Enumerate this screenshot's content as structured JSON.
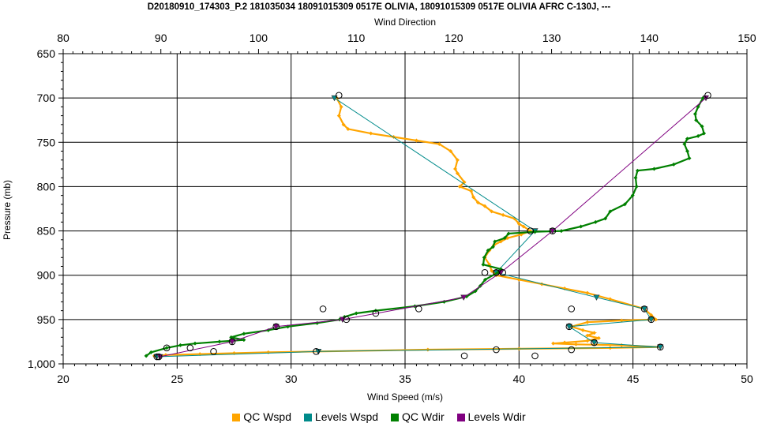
{
  "title": "D20180910_174303_P.2 181035034 18091015309 0517E OLIVIA, 18091015309 0517E OLIVIA AFRC C-130J, ---",
  "chart_data": {
    "type": "line",
    "title": "D20180910_174303_P.2 181035034 18091015309 0517E OLIVIA, 18091015309 0517E OLIVIA AFRC C-130J, ---",
    "xlabel": "Wind Speed (m/s)",
    "x2label": "Wind Direction",
    "ylabel": "Pressure (mb)",
    "xlim": [
      20,
      50
    ],
    "x2lim": [
      80,
      150
    ],
    "ylim": [
      1000,
      650
    ],
    "x_ticks": [
      "20",
      "25",
      "30",
      "35",
      "40",
      "45",
      "50"
    ],
    "x2_ticks": [
      "80",
      "90",
      "100",
      "110",
      "120",
      "130",
      "140",
      "150"
    ],
    "y_ticks": [
      "650",
      "700",
      "750",
      "800",
      "850",
      "900",
      "950",
      "1,000"
    ],
    "grid": true,
    "legend_position": "bottom",
    "series": [
      {
        "name": "QC Wspd",
        "axis": "bottom",
        "color": "#FFA500",
        "marker": "diamond",
        "points": [
          [
            32.0,
            700
          ],
          [
            32.2,
            710
          ],
          [
            32.1,
            720
          ],
          [
            32.3,
            730
          ],
          [
            32.5,
            735
          ],
          [
            33.5,
            740
          ],
          [
            34.5,
            744
          ],
          [
            35.5,
            748
          ],
          [
            36.5,
            752
          ],
          [
            37.0,
            760
          ],
          [
            37.3,
            770
          ],
          [
            37.2,
            780
          ],
          [
            37.3,
            785
          ],
          [
            37.6,
            795
          ],
          [
            37.4,
            800
          ],
          [
            37.9,
            805
          ],
          [
            38.0,
            812
          ],
          [
            38.2,
            818
          ],
          [
            38.5,
            822
          ],
          [
            38.8,
            828
          ],
          [
            39.3,
            832
          ],
          [
            39.8,
            836
          ],
          [
            40.0,
            842
          ],
          [
            40.2,
            845
          ],
          [
            40.5,
            850
          ],
          [
            40.1,
            854
          ],
          [
            39.5,
            858
          ],
          [
            39.2,
            862
          ],
          [
            38.9,
            866
          ],
          [
            38.7,
            872
          ],
          [
            38.5,
            880
          ],
          [
            38.7,
            888
          ],
          [
            38.8,
            895
          ],
          [
            39.0,
            900
          ],
          [
            40.0,
            905
          ],
          [
            41.0,
            910
          ],
          [
            42.0,
            915
          ],
          [
            43.0,
            920
          ],
          [
            44.0,
            927
          ],
          [
            45.5,
            938
          ],
          [
            45.8,
            945
          ],
          [
            46.0,
            950
          ],
          [
            44.5,
            951
          ],
          [
            43.0,
            953
          ],
          [
            42.3,
            958
          ],
          [
            42.8,
            962
          ],
          [
            43.3,
            965
          ],
          [
            43.0,
            968
          ],
          [
            43.5,
            971
          ],
          [
            43.0,
            974
          ],
          [
            42.0,
            976
          ],
          [
            41.5,
            977
          ],
          [
            42.5,
            978
          ],
          [
            44.5,
            979
          ],
          [
            46.2,
            981
          ],
          [
            44.0,
            982
          ],
          [
            40.0,
            983
          ],
          [
            36.0,
            984
          ],
          [
            31.2,
            986
          ],
          [
            29.0,
            987
          ],
          [
            27.5,
            988
          ],
          [
            26.0,
            989
          ],
          [
            24.5,
            990
          ],
          [
            24.0,
            991
          ]
        ]
      },
      {
        "name": "Levels Wspd",
        "axis": "bottom",
        "color": "#008B8B",
        "marker": "triangle-down",
        "points": [
          [
            31.9,
            700
          ],
          [
            40.7,
            850
          ],
          [
            39.0,
            897
          ],
          [
            43.4,
            925
          ],
          [
            45.5,
            938
          ],
          [
            45.8,
            950
          ],
          [
            42.2,
            958
          ],
          [
            43.3,
            976
          ],
          [
            46.2,
            981
          ],
          [
            31.2,
            986
          ],
          [
            24.1,
            992
          ]
        ]
      },
      {
        "name": "QC Wdir",
        "axis": "top",
        "color": "#008000",
        "marker": "diamond",
        "points": [
          [
            145.5,
            700
          ],
          [
            145.0,
            710
          ],
          [
            144.7,
            718
          ],
          [
            144.8,
            725
          ],
          [
            145.4,
            732
          ],
          [
            145.6,
            740
          ],
          [
            145.0,
            743
          ],
          [
            143.9,
            746
          ],
          [
            143.6,
            752
          ],
          [
            143.9,
            760
          ],
          [
            144.1,
            768
          ],
          [
            142.5,
            775
          ],
          [
            140.5,
            780
          ],
          [
            138.8,
            782
          ],
          [
            138.6,
            790
          ],
          [
            138.7,
            800
          ],
          [
            138.3,
            810
          ],
          [
            137.5,
            820
          ],
          [
            136.0,
            828
          ],
          [
            135.5,
            836
          ],
          [
            134.5,
            840
          ],
          [
            133.0,
            845
          ],
          [
            131.0,
            850
          ],
          [
            128.3,
            851
          ],
          [
            125.6,
            853
          ],
          [
            125.2,
            858
          ],
          [
            124.2,
            862
          ],
          [
            124.0,
            868
          ],
          [
            123.5,
            872
          ],
          [
            123.1,
            880
          ],
          [
            123.0,
            888
          ],
          [
            124.8,
            893
          ],
          [
            124.5,
            897
          ],
          [
            123.2,
            905
          ],
          [
            122.7,
            912
          ],
          [
            122.2,
            918
          ],
          [
            121.3,
            924
          ],
          [
            119.0,
            930
          ],
          [
            116.0,
            935
          ],
          [
            112.0,
            940
          ],
          [
            110.0,
            943
          ],
          [
            108.8,
            947
          ],
          [
            108.3,
            950
          ],
          [
            106.0,
            954
          ],
          [
            103.0,
            958
          ],
          [
            101.0,
            962
          ],
          [
            98.5,
            966
          ],
          [
            97.2,
            970
          ],
          [
            98.5,
            973
          ],
          [
            96.0,
            975
          ],
          [
            93.5,
            977
          ],
          [
            92.0,
            979
          ],
          [
            90.6,
            982
          ],
          [
            89.0,
            987
          ],
          [
            88.5,
            991
          ]
        ]
      },
      {
        "name": "Levels Wdir",
        "axis": "top",
        "color": "#800080",
        "marker": "triangle-down",
        "points": [
          [
            145.8,
            700
          ],
          [
            130.1,
            850
          ],
          [
            124.8,
            897
          ],
          [
            121.0,
            925
          ],
          [
            108.6,
            950
          ],
          [
            101.8,
            958
          ],
          [
            97.3,
            975
          ],
          [
            89.9,
            992
          ]
        ]
      }
    ],
    "circle_points": {
      "color": "#000000",
      "x_bottom": [
        [
          32.1,
          697
        ],
        [
          40.5,
          850
        ],
        [
          38.5,
          897
        ],
        [
          39.0,
          897
        ],
        [
          31.4,
          938
        ],
        [
          35.6,
          938
        ],
        [
          42.3,
          938
        ],
        [
          45.5,
          938
        ],
        [
          45.8,
          950
        ],
        [
          42.2,
          958
        ],
        [
          43.3,
          976
        ],
        [
          46.2,
          981
        ],
        [
          39.0,
          984
        ],
        [
          42.3,
          984
        ],
        [
          31.1,
          986
        ],
        [
          37.6,
          991
        ],
        [
          40.7,
          991
        ],
        [
          24.2,
          992
        ]
      ],
      "x_top": [
        [
          146.0,
          697
        ],
        [
          130.1,
          850
        ],
        [
          125.0,
          897
        ],
        [
          112.0,
          943
        ],
        [
          109.0,
          950
        ],
        [
          101.8,
          958
        ],
        [
          97.3,
          975
        ],
        [
          90.6,
          982
        ],
        [
          93.0,
          982
        ],
        [
          95.4,
          986
        ],
        [
          89.6,
          992
        ]
      ]
    }
  },
  "legend": [
    {
      "label": "QC Wspd",
      "color": "#FFA500"
    },
    {
      "label": "Levels Wspd",
      "color": "#008B8B"
    },
    {
      "label": "QC Wdir",
      "color": "#008000"
    },
    {
      "label": "Levels Wdir",
      "color": "#800080"
    }
  ]
}
